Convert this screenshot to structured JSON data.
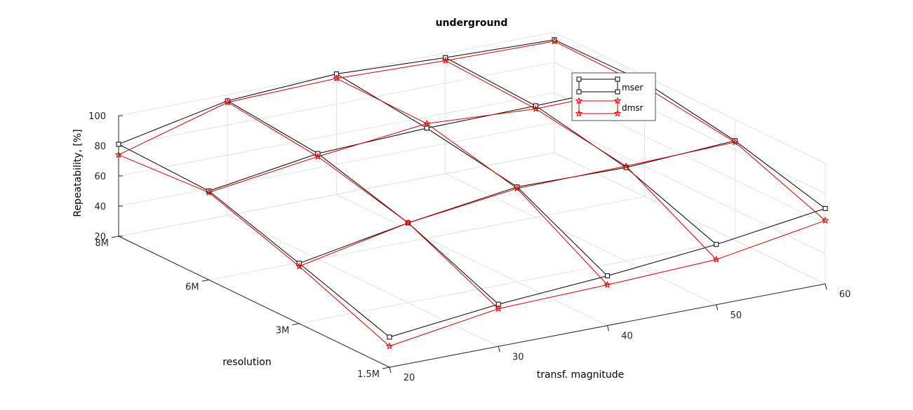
{
  "chart_data": {
    "type": "line",
    "projection": "3d-surface-mesh",
    "title": "underground",
    "xlabel": "transf. magnitude",
    "ylabel": "resolution",
    "zlabel": "Repeatability, [%]",
    "x": [
      20,
      30,
      40,
      50,
      60
    ],
    "x_ticks": [
      "20",
      "30",
      "40",
      "50",
      "60"
    ],
    "y": [
      "1.5M",
      "3M",
      "6M",
      "8M"
    ],
    "y_ticks": [
      "1.5M",
      "3M",
      "6M",
      "8M"
    ],
    "zlim": [
      20,
      100
    ],
    "z_ticks": [
      "20",
      "40",
      "60",
      "80",
      "100"
    ],
    "grid": true,
    "legend_position": "top-right",
    "series": [
      {
        "name": "mser",
        "color": "#000000",
        "marker": "square",
        "values": [
          [
            40,
            48,
            53,
            60,
            70
          ],
          [
            60,
            73,
            83,
            82,
            86
          ],
          [
            79,
            90,
            93,
            94,
            96
          ],
          [
            81,
            96,
            100,
            97,
            95
          ]
        ]
      },
      {
        "name": "dmsr",
        "color": "#d40000",
        "marker": "star",
        "values": [
          [
            34,
            45,
            47,
            50,
            62
          ],
          [
            58,
            73,
            82,
            83,
            85
          ],
          [
            78,
            88,
            96,
            92,
            93
          ],
          [
            74,
            95,
            97,
            95,
            94
          ]
        ]
      }
    ]
  }
}
